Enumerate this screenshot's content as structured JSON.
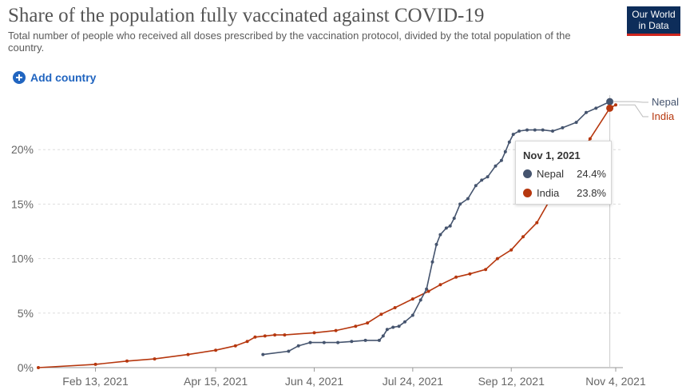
{
  "header": {
    "title": "Share of the population fully vaccinated against COVID-19",
    "subtitle": "Total number of people who received all doses prescribed by the vaccination protocol, divided by the total population of the country.",
    "logo_line1": "Our World",
    "logo_line2": "in Data",
    "add_country_label": "Add country"
  },
  "tooltip": {
    "date": "Nov 1, 2021",
    "rows": [
      {
        "name": "Nepal",
        "value": "24.4%"
      },
      {
        "name": "India",
        "value": "23.8%"
      }
    ]
  },
  "colors": {
    "nepal": "#45546e",
    "india": "#b6370e",
    "grid": "#dddddd",
    "link": "#2165c0"
  },
  "chart_data": {
    "type": "line",
    "title": "Share of the population fully vaccinated against COVID-19",
    "xlabel": "",
    "ylabel": "",
    "ylim": [
      0,
      25
    ],
    "yticks": [
      0,
      5,
      10,
      15,
      20
    ],
    "ytick_labels": [
      "0%",
      "5%",
      "10%",
      "15%",
      "20%"
    ],
    "xtick_labels": [
      "Feb 13, 2021",
      "Apr 15, 2021",
      "Jun 4, 2021",
      "Jul 24, 2021",
      "Sep 12, 2021",
      "Nov 4, 2021"
    ],
    "xticks": [
      "2021-02-13",
      "2021-04-15",
      "2021-06-04",
      "2021-07-24",
      "2021-09-12",
      "2021-11-04"
    ],
    "xlim": [
      "2021-01-15",
      "2021-11-04"
    ],
    "grid": "horizontal dashed",
    "legend": "end-of-line labels on right",
    "series": [
      {
        "name": "Nepal",
        "color": "#45546e",
        "dates": [
          "2021-05-09",
          "2021-05-22",
          "2021-05-27",
          "2021-06-02",
          "2021-06-09",
          "2021-06-16",
          "2021-06-23",
          "2021-06-30",
          "2021-07-07",
          "2021-07-09",
          "2021-07-11",
          "2021-07-14",
          "2021-07-17",
          "2021-07-20",
          "2021-07-24",
          "2021-07-28",
          "2021-07-31",
          "2021-08-03",
          "2021-08-05",
          "2021-08-07",
          "2021-08-10",
          "2021-08-12",
          "2021-08-14",
          "2021-08-17",
          "2021-08-21",
          "2021-08-25",
          "2021-08-28",
          "2021-08-31",
          "2021-09-04",
          "2021-09-07",
          "2021-09-09",
          "2021-09-11",
          "2021-09-13",
          "2021-09-16",
          "2021-09-20",
          "2021-09-24",
          "2021-09-28",
          "2021-10-03",
          "2021-10-08",
          "2021-10-15",
          "2021-10-20",
          "2021-10-25",
          "2021-11-01"
        ],
        "values": [
          1.2,
          1.5,
          2.0,
          2.3,
          2.3,
          2.3,
          2.4,
          2.5,
          2.5,
          2.9,
          3.5,
          3.7,
          3.8,
          4.2,
          4.8,
          6.2,
          7.2,
          9.7,
          11.3,
          12.2,
          12.8,
          13.0,
          13.7,
          15.0,
          15.5,
          16.7,
          17.2,
          17.5,
          18.5,
          19.0,
          19.8,
          20.7,
          21.4,
          21.7,
          21.8,
          21.8,
          21.8,
          21.7,
          22.0,
          22.5,
          23.4,
          23.8,
          24.4
        ]
      },
      {
        "name": "India",
        "color": "#b6370e",
        "dates": [
          "2021-01-15",
          "2021-02-13",
          "2021-03-01",
          "2021-03-15",
          "2021-04-01",
          "2021-04-15",
          "2021-04-25",
          "2021-05-01",
          "2021-05-05",
          "2021-05-10",
          "2021-05-15",
          "2021-05-20",
          "2021-06-04",
          "2021-06-15",
          "2021-06-25",
          "2021-07-01",
          "2021-07-08",
          "2021-07-15",
          "2021-07-24",
          "2021-08-01",
          "2021-08-07",
          "2021-08-15",
          "2021-08-22",
          "2021-08-30",
          "2021-09-05",
          "2021-09-12",
          "2021-09-18",
          "2021-09-25",
          "2021-10-01",
          "2021-10-08",
          "2021-10-15",
          "2021-10-22",
          "2021-11-01",
          "2021-11-04"
        ],
        "values": [
          0.0,
          0.3,
          0.6,
          0.8,
          1.2,
          1.6,
          2.0,
          2.4,
          2.8,
          2.9,
          3.0,
          3.0,
          3.2,
          3.4,
          3.8,
          4.1,
          4.9,
          5.5,
          6.3,
          7.0,
          7.6,
          8.3,
          8.6,
          9.0,
          10.0,
          10.8,
          12.0,
          13.3,
          15.2,
          17.0,
          19.0,
          21.0,
          23.8,
          24.1
        ]
      }
    ],
    "end_labels": [
      "Nepal",
      "India"
    ]
  }
}
